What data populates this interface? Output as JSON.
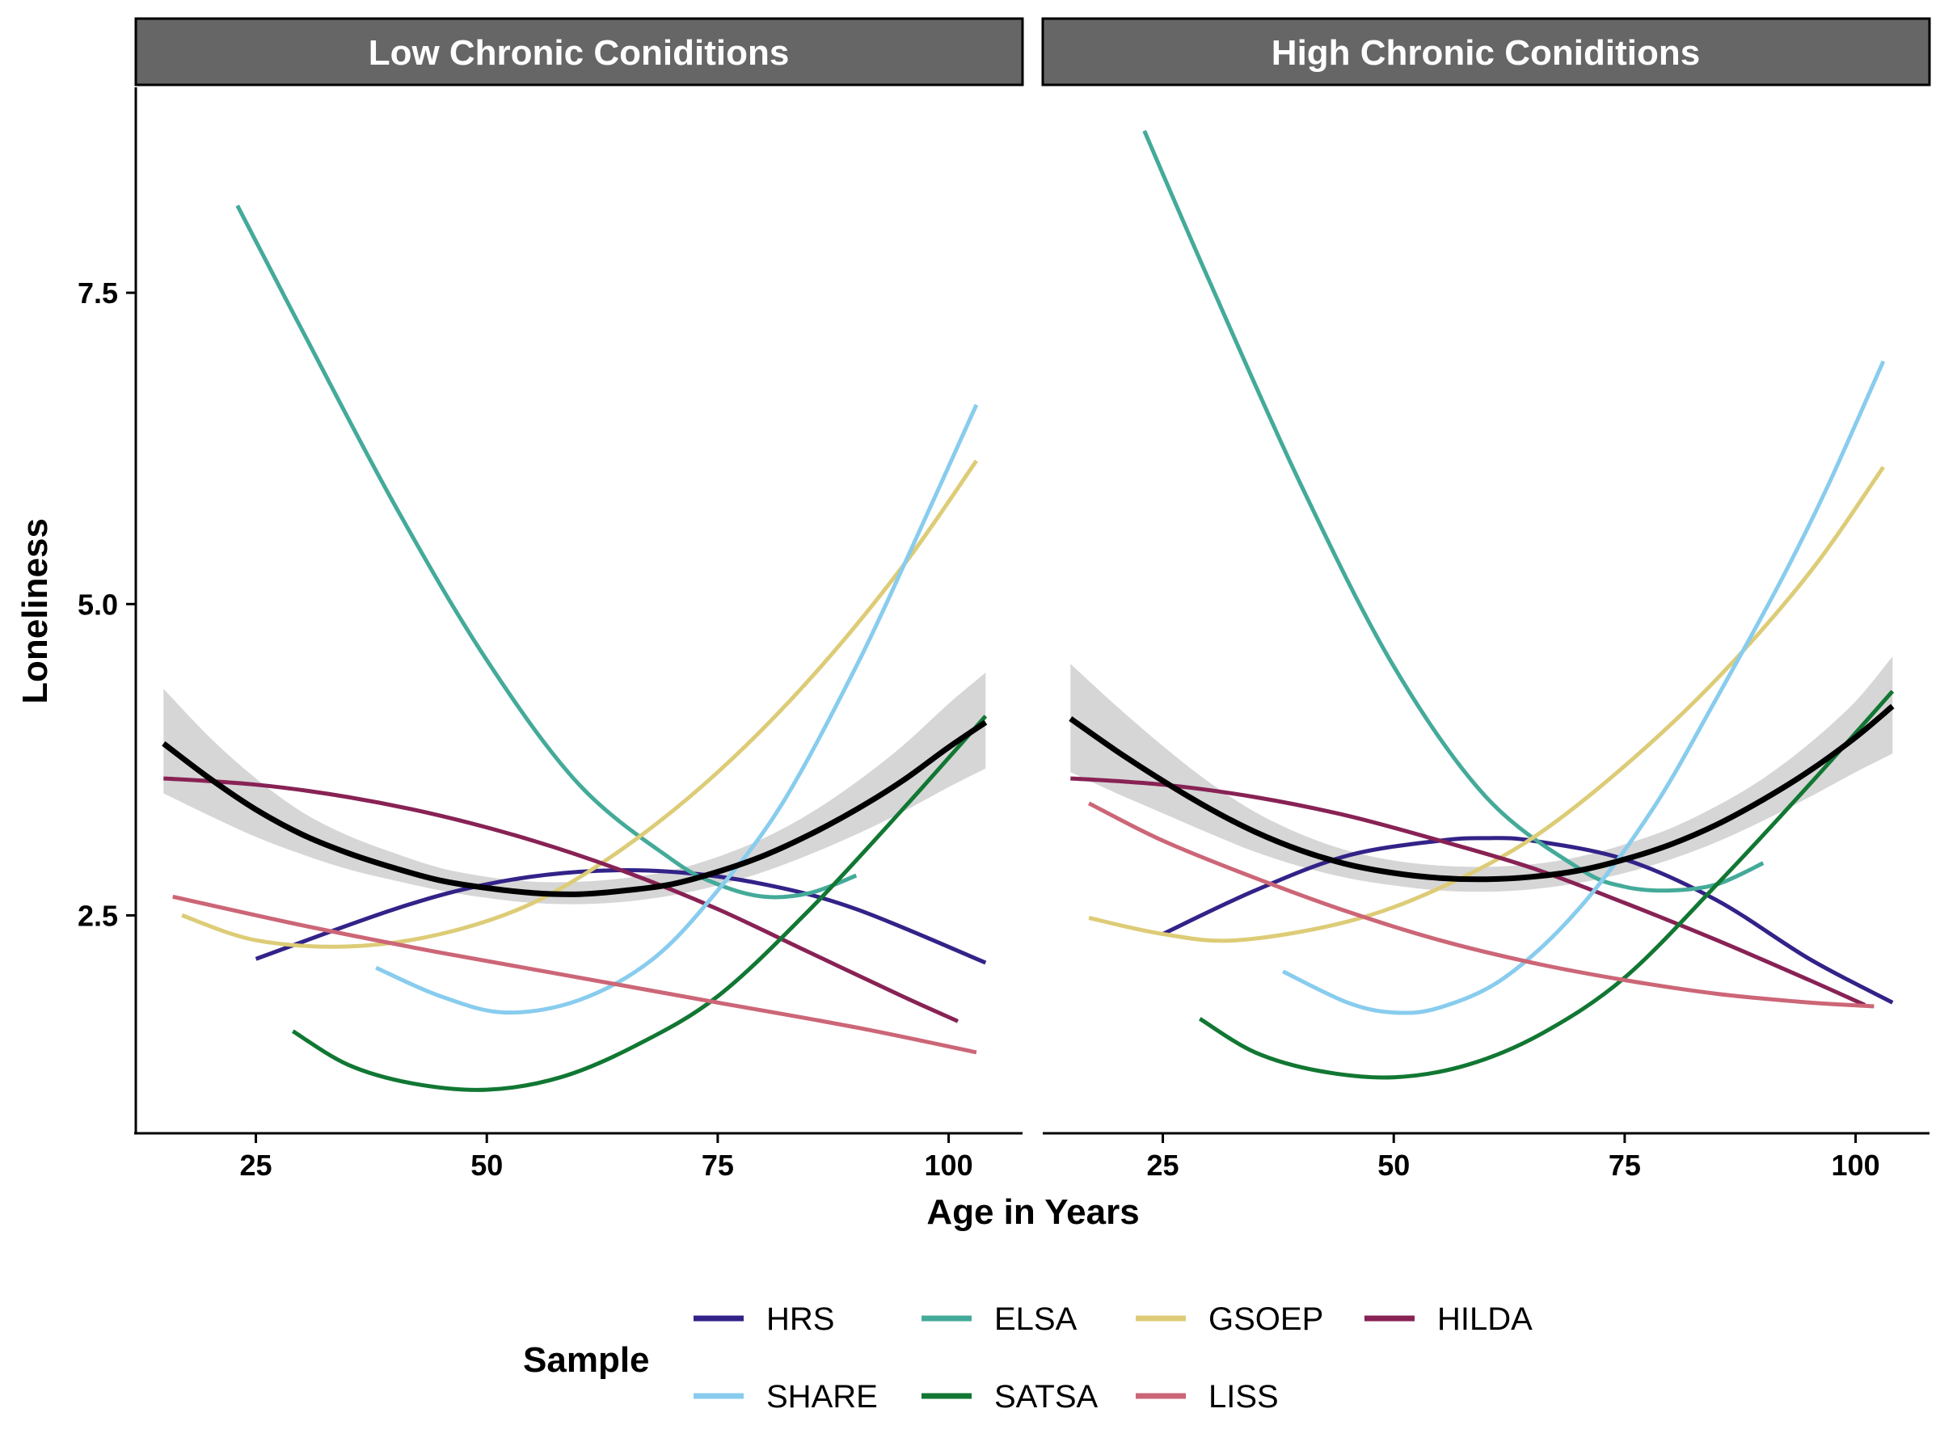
{
  "chart_data": {
    "type": "line",
    "xlabel": "Age in Years",
    "ylabel": "Loneliness",
    "xlim": [
      12,
      108
    ],
    "ylim": [
      0.75,
      9.15
    ],
    "x_ticks": [
      25,
      50,
      75,
      100
    ],
    "x_tick_labels": [
      "25",
      "50",
      "75",
      "100"
    ],
    "y_ticks": [
      2.5,
      5.0,
      7.5
    ],
    "y_tick_labels": [
      "2.5",
      "5.0",
      "7.5"
    ],
    "grid": false,
    "legend": {
      "title": "Sample",
      "position": "bottom",
      "rows": [
        [
          "HRS",
          "ELSA",
          "GSOEP",
          "HILDA"
        ],
        [
          "SHARE",
          "SATSA",
          "LISS"
        ]
      ]
    },
    "colors": {
      "HRS": "#332288",
      "ELSA": "#44AA99",
      "GSOEP": "#DDCC77",
      "HILDA": "#882255",
      "SHARE": "#88CCEE",
      "SATSA": "#117733",
      "LISS": "#CC6677",
      "overall": "#000000",
      "ribbon": "#cccccc"
    },
    "panels": [
      {
        "title": "Low Chronic Coniditions",
        "series": [
          {
            "name": "HRS",
            "x": [
              25,
              40,
              50,
              60,
              70,
              80,
              90,
              104
            ],
            "y": [
              2.15,
              2.55,
              2.75,
              2.85,
              2.85,
              2.75,
              2.55,
              2.12
            ]
          },
          {
            "name": "ELSA",
            "x": [
              23,
              30,
              40,
              50,
              60,
              70,
              75,
              80,
              85,
              90
            ],
            "y": [
              8.2,
              7.2,
              5.8,
              4.55,
              3.55,
              2.95,
              2.75,
              2.65,
              2.68,
              2.82
            ]
          },
          {
            "name": "GSOEP",
            "x": [
              17,
              25,
              35,
              45,
              55,
              65,
              75,
              85,
              95,
              103
            ],
            "y": [
              2.5,
              2.3,
              2.25,
              2.35,
              2.6,
              3.05,
              3.65,
              4.4,
              5.3,
              6.15
            ]
          },
          {
            "name": "HILDA",
            "x": [
              15,
              25,
              35,
              45,
              55,
              65,
              75,
              85,
              95,
              101
            ],
            "y": [
              3.6,
              3.55,
              3.45,
              3.3,
              3.1,
              2.85,
              2.55,
              2.2,
              1.85,
              1.65
            ]
          },
          {
            "name": "SHARE",
            "x": [
              38,
              45,
              52,
              60,
              68,
              75,
              82,
              90,
              96,
              103
            ],
            "y": [
              2.08,
              1.85,
              1.72,
              1.82,
              2.15,
              2.7,
              3.4,
              4.5,
              5.45,
              6.6
            ]
          },
          {
            "name": "SATSA",
            "x": [
              29,
              35,
              42,
              50,
              58,
              66,
              75,
              85,
              95,
              104
            ],
            "y": [
              1.57,
              1.3,
              1.15,
              1.1,
              1.2,
              1.45,
              1.85,
              2.55,
              3.35,
              4.1
            ]
          },
          {
            "name": "LISS",
            "x": [
              16,
              30,
              45,
              60,
              75,
              90,
              103
            ],
            "y": [
              2.65,
              2.42,
              2.2,
              2.0,
              1.8,
              1.6,
              1.4
            ]
          }
        ],
        "overall": {
          "x": [
            15,
            20,
            25,
            30,
            35,
            40,
            45,
            50,
            55,
            60,
            65,
            70,
            75,
            80,
            85,
            90,
            95,
            100,
            104
          ],
          "y": [
            3.88,
            3.6,
            3.35,
            3.15,
            3.0,
            2.88,
            2.78,
            2.72,
            2.68,
            2.67,
            2.7,
            2.75,
            2.85,
            2.98,
            3.15,
            3.35,
            3.58,
            3.85,
            4.05
          ],
          "lower": [
            3.48,
            3.3,
            3.13,
            2.99,
            2.87,
            2.78,
            2.7,
            2.64,
            2.6,
            2.59,
            2.61,
            2.66,
            2.74,
            2.85,
            2.99,
            3.15,
            3.33,
            3.53,
            3.68
          ],
          "upper": [
            4.32,
            3.93,
            3.6,
            3.33,
            3.14,
            3.0,
            2.88,
            2.81,
            2.77,
            2.77,
            2.8,
            2.86,
            2.97,
            3.12,
            3.32,
            3.57,
            3.86,
            4.2,
            4.45
          ]
        }
      },
      {
        "title": "High Chronic Coniditions",
        "series": [
          {
            "name": "HRS",
            "x": [
              25,
              35,
              45,
              55,
              60,
              65,
              75,
              85,
              95,
              104
            ],
            "y": [
              2.35,
              2.7,
              2.98,
              3.1,
              3.12,
              3.1,
              2.95,
              2.62,
              2.15,
              1.8
            ]
          },
          {
            "name": "ELSA",
            "x": [
              23,
              30,
              40,
              50,
              60,
              70,
              75,
              80,
              85,
              90
            ],
            "y": [
              8.8,
              7.6,
              5.95,
              4.5,
              3.45,
              2.88,
              2.73,
              2.7,
              2.75,
              2.92
            ]
          },
          {
            "name": "GSOEP",
            "x": [
              17,
              25,
              33,
              45,
              55,
              65,
              75,
              85,
              95,
              103
            ],
            "y": [
              2.48,
              2.35,
              2.3,
              2.45,
              2.72,
              3.12,
              3.7,
              4.4,
              5.25,
              6.1
            ]
          },
          {
            "name": "HILDA",
            "x": [
              15,
              25,
              35,
              45,
              55,
              65,
              75,
              85,
              95,
              101
            ],
            "y": [
              3.6,
              3.55,
              3.45,
              3.3,
              3.1,
              2.88,
              2.6,
              2.3,
              1.98,
              1.78
            ]
          },
          {
            "name": "SHARE",
            "x": [
              38,
              45,
              50,
              55,
              62,
              70,
              78,
              85,
              92,
              97,
              103
            ],
            "y": [
              2.05,
              1.8,
              1.72,
              1.76,
              2.0,
              2.55,
              3.35,
              4.25,
              5.2,
              5.95,
              6.95
            ]
          },
          {
            "name": "SATSA",
            "x": [
              29,
              35,
              42,
              50,
              58,
              66,
              75,
              85,
              95,
              104
            ],
            "y": [
              1.67,
              1.4,
              1.25,
              1.2,
              1.3,
              1.55,
              2.0,
              2.75,
              3.55,
              4.3
            ]
          },
          {
            "name": "LISS",
            "x": [
              17,
              25,
              35,
              45,
              55,
              65,
              75,
              85,
              95,
              102
            ],
            "y": [
              3.4,
              3.1,
              2.8,
              2.53,
              2.3,
              2.12,
              1.98,
              1.87,
              1.8,
              1.77
            ]
          }
        ],
        "overall": {
          "x": [
            15,
            20,
            25,
            30,
            35,
            40,
            45,
            50,
            55,
            60,
            65,
            70,
            75,
            80,
            85,
            90,
            95,
            100,
            104
          ],
          "y": [
            4.08,
            3.82,
            3.58,
            3.36,
            3.17,
            3.02,
            2.91,
            2.84,
            2.8,
            2.79,
            2.81,
            2.86,
            2.95,
            3.07,
            3.23,
            3.43,
            3.66,
            3.93,
            4.18
          ],
          "lower": [
            3.65,
            3.48,
            3.32,
            3.16,
            3.01,
            2.89,
            2.8,
            2.74,
            2.7,
            2.69,
            2.71,
            2.76,
            2.84,
            2.95,
            3.09,
            3.26,
            3.45,
            3.65,
            3.8
          ],
          "upper": [
            4.52,
            4.18,
            3.86,
            3.57,
            3.33,
            3.15,
            3.02,
            2.94,
            2.9,
            2.89,
            2.91,
            2.97,
            3.07,
            3.2,
            3.38,
            3.6,
            3.88,
            4.22,
            4.58
          ]
        }
      }
    ]
  }
}
